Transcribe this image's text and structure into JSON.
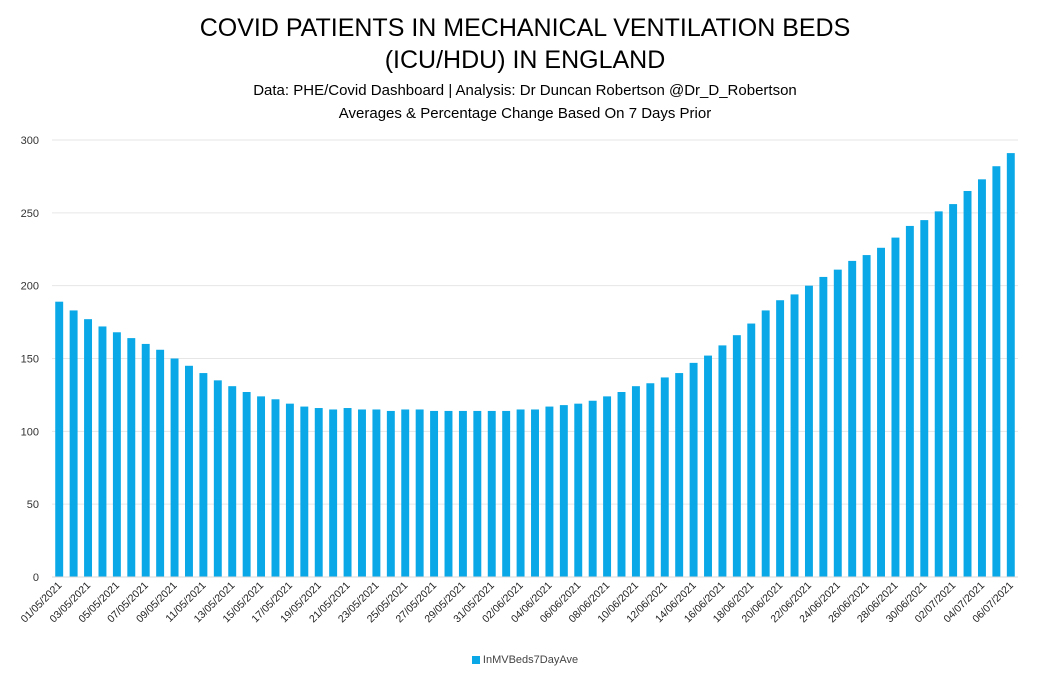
{
  "chart_data": {
    "type": "bar",
    "title": "COVID PATIENTS IN MECHANICAL VENTILATION BEDS (ICU/HDU) IN ENGLAND",
    "title_lines": [
      "COVID PATIENTS IN MECHANICAL VENTILATION BEDS",
      "(ICU/HDU) IN ENGLAND"
    ],
    "subtitle_lines": [
      "Data: PHE/Covid Dashboard | Analysis: Dr Duncan Robertson @Dr_D_Robertson",
      "Averages & Percentage Change Based On 7 Days Prior"
    ],
    "xlabel": "",
    "ylabel": "",
    "ylim": [
      0,
      300
    ],
    "yticks": [
      0,
      50,
      100,
      150,
      200,
      250,
      300
    ],
    "grid": true,
    "legend_position": "bottom",
    "color": "#0aa8e6",
    "series": [
      {
        "name": "InMVBeds7DayAve",
        "values": [
          189,
          183,
          177,
          172,
          168,
          164,
          160,
          156,
          150,
          145,
          140,
          135,
          131,
          127,
          124,
          122,
          119,
          117,
          116,
          115,
          116,
          115,
          115,
          114,
          115,
          115,
          114,
          114,
          114,
          114,
          114,
          114,
          115,
          115,
          117,
          118,
          119,
          121,
          124,
          127,
          131,
          133,
          137,
          140,
          147,
          152,
          159,
          166,
          174,
          183,
          190,
          194,
          200,
          206,
          211,
          217,
          221,
          226,
          233,
          241,
          245,
          251,
          256,
          265,
          273,
          282,
          291
        ]
      }
    ],
    "categories": [
      "01/05/2021",
      "02/05/2021",
      "03/05/2021",
      "04/05/2021",
      "05/05/2021",
      "06/05/2021",
      "07/05/2021",
      "08/05/2021",
      "09/05/2021",
      "10/05/2021",
      "11/05/2021",
      "12/05/2021",
      "13/05/2021",
      "14/05/2021",
      "15/05/2021",
      "16/05/2021",
      "17/05/2021",
      "18/05/2021",
      "19/05/2021",
      "20/05/2021",
      "21/05/2021",
      "22/05/2021",
      "23/05/2021",
      "24/05/2021",
      "25/05/2021",
      "26/05/2021",
      "27/05/2021",
      "28/05/2021",
      "29/05/2021",
      "30/05/2021",
      "31/05/2021",
      "01/06/2021",
      "02/06/2021",
      "03/06/2021",
      "04/06/2021",
      "05/06/2021",
      "06/06/2021",
      "07/06/2021",
      "08/06/2021",
      "09/06/2021",
      "10/06/2021",
      "11/06/2021",
      "12/06/2021",
      "13/06/2021",
      "14/06/2021",
      "15/06/2021",
      "16/06/2021",
      "17/06/2021",
      "18/06/2021",
      "19/06/2021",
      "20/06/2021",
      "21/06/2021",
      "22/06/2021",
      "23/06/2021",
      "24/06/2021",
      "25/06/2021",
      "26/06/2021",
      "27/06/2021",
      "28/06/2021",
      "29/06/2021",
      "30/06/2021",
      "01/07/2021",
      "02/07/2021",
      "03/07/2021",
      "04/07/2021",
      "05/07/2021",
      "06/07/2021"
    ],
    "tick_labels": [
      "01/05/2021",
      "03/05/2021",
      "05/05/2021",
      "07/05/2021",
      "09/05/2021",
      "11/05/2021",
      "13/05/2021",
      "15/05/2021",
      "17/05/2021",
      "19/05/2021",
      "21/05/2021",
      "23/05/2021",
      "25/05/2021",
      "27/05/2021",
      "29/05/2021",
      "31/05/2021",
      "02/06/2021",
      "04/06/2021",
      "06/06/2021",
      "08/06/2021",
      "10/06/2021",
      "12/06/2021",
      "14/06/2021",
      "16/06/2021",
      "18/06/2021",
      "20/06/2021",
      "22/06/2021",
      "24/06/2021",
      "26/06/2021",
      "28/06/2021",
      "30/06/2021",
      "02/07/2021",
      "04/07/2021",
      "06/07/2021"
    ]
  }
}
